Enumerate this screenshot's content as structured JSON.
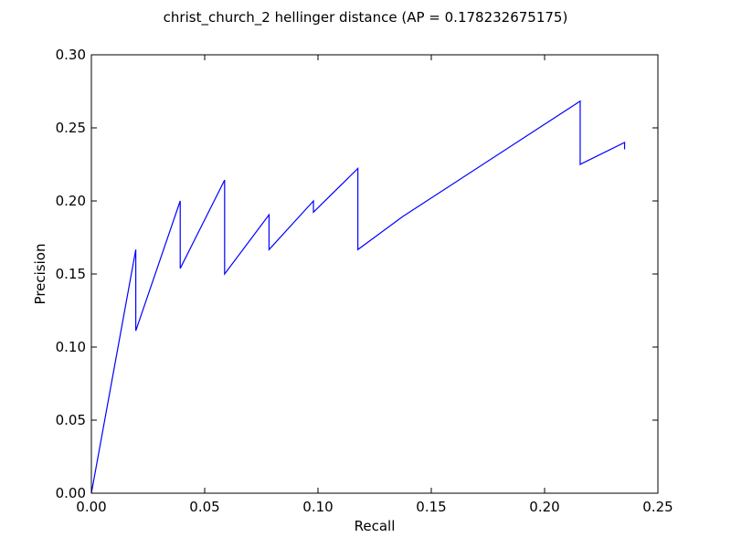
{
  "chart_data": {
    "type": "line",
    "title": "christ_church_2 hellinger distance  (AP = 0.178232675175)",
    "xlabel": "Recall",
    "ylabel": "Precision",
    "xlim": [
      0,
      0.25
    ],
    "ylim": [
      0,
      0.3
    ],
    "xticks": [
      0,
      0.05,
      0.1,
      0.15,
      0.2,
      0.25
    ],
    "xtick_labels": [
      "0.00",
      "0.05",
      "0.10",
      "0.15",
      "0.20",
      "0.25"
    ],
    "yticks": [
      0,
      0.05,
      0.1,
      0.15,
      0.2,
      0.25,
      0.3
    ],
    "ytick_labels": [
      "0.00",
      "0.05",
      "0.10",
      "0.15",
      "0.20",
      "0.25",
      "0.30"
    ],
    "grid": false,
    "legend": false,
    "series": [
      {
        "color": "#0000ff",
        "x": [
          0,
          0.0196,
          0.0196,
          0.0392,
          0.0392,
          0.0588,
          0.0588,
          0.0784,
          0.0784,
          0.098,
          0.098,
          0.1176,
          0.1176,
          0.1373,
          0.2157,
          0.2157,
          0.2353,
          0.2353
        ],
        "y": [
          0,
          0.1667,
          0.1111,
          0.2,
          0.1538,
          0.2143,
          0.15,
          0.1905,
          0.1667,
          0.2,
          0.1923,
          0.2222,
          0.1667,
          0.1892,
          0.2683,
          0.225,
          0.24,
          0.2353
        ]
      }
    ]
  }
}
